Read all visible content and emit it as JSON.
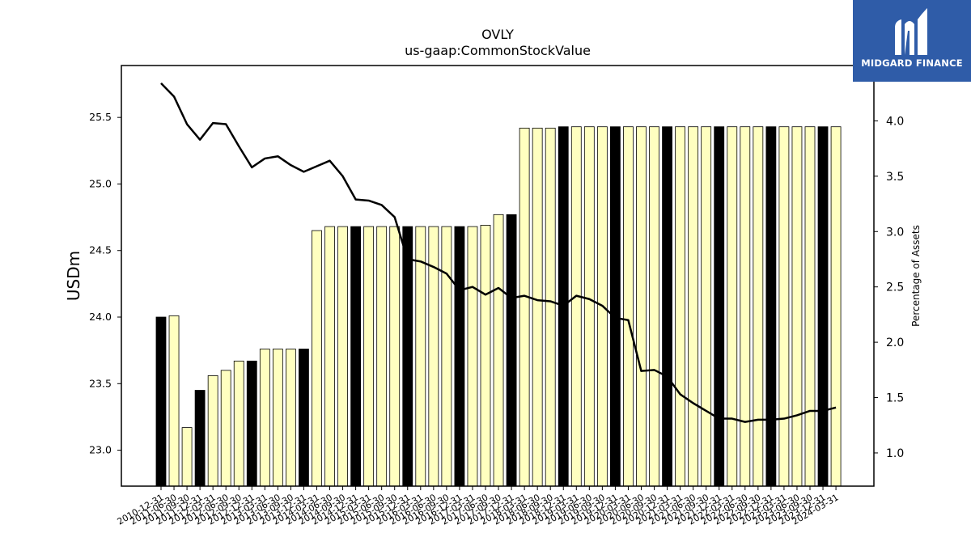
{
  "watermark": {
    "text": "MIDGARD FINANCE",
    "bg_color": "#2f5ca8"
  },
  "chart_data": {
    "type": "bar",
    "title": "OVLY",
    "subtitle": "us-gaap:CommonStockValue",
    "ylabel": "USDm",
    "y2label": "Percentage of Assets",
    "ylim": [
      22.73,
      25.89
    ],
    "y2lim": [
      0.7,
      4.5
    ],
    "yticks": [
      "23.0",
      "23.5",
      "24.0",
      "24.5",
      "25.0",
      "25.5"
    ],
    "y2ticks": [
      "1.0",
      "1.5",
      "2.0",
      "2.5",
      "3.0",
      "3.5",
      "4.0"
    ],
    "bar_colors": {
      "annual": "#000000",
      "quarterly": "#ffffc0",
      "edge": "#000000"
    },
    "line_color": "#000000",
    "categories": [
      "2010-12-31",
      "2011-06-30",
      "2011-09-30",
      "2011-12-31",
      "2012-03-31",
      "2012-06-30",
      "2012-09-30",
      "2012-12-31",
      "2013-03-31",
      "2013-06-30",
      "2013-09-30",
      "2013-12-31",
      "2014-03-31",
      "2014-06-30",
      "2014-09-30",
      "2014-12-31",
      "2015-03-31",
      "2015-06-30",
      "2015-09-30",
      "2015-12-31",
      "2016-03-31",
      "2016-06-30",
      "2016-09-30",
      "2016-12-31",
      "2017-03-31",
      "2017-06-30",
      "2017-09-30",
      "2017-12-31",
      "2018-03-31",
      "2018-06-30",
      "2018-09-30",
      "2018-12-31",
      "2019-03-31",
      "2019-06-30",
      "2019-09-30",
      "2019-12-31",
      "2020-03-31",
      "2020-06-30",
      "2020-09-30",
      "2020-12-31",
      "2021-03-31",
      "2021-06-30",
      "2021-09-30",
      "2021-12-31",
      "2022-03-31",
      "2022-06-30",
      "2022-09-30",
      "2022-12-31",
      "2023-03-31",
      "2023-06-30",
      "2023-09-30",
      "2023-12-31",
      "2024-03-31"
    ],
    "values": [
      24.0,
      24.01,
      23.17,
      23.45,
      23.56,
      23.6,
      23.67,
      23.67,
      23.76,
      23.76,
      23.76,
      23.76,
      24.65,
      24.68,
      24.68,
      24.68,
      24.68,
      24.68,
      24.68,
      24.68,
      24.68,
      24.68,
      24.68,
      24.68,
      24.68,
      24.69,
      24.77,
      24.77,
      25.42,
      25.42,
      25.42,
      25.43,
      25.43,
      25.43,
      25.43,
      25.43,
      25.43,
      25.43,
      25.43,
      25.43,
      25.43,
      25.43,
      25.43,
      25.43,
      25.43,
      25.43,
      25.43,
      25.43,
      25.43,
      25.43,
      25.43,
      25.43,
      25.43
    ],
    "annual": [
      true,
      false,
      false,
      true,
      false,
      false,
      false,
      true,
      false,
      false,
      false,
      true,
      false,
      false,
      false,
      true,
      false,
      false,
      false,
      true,
      false,
      false,
      false,
      true,
      false,
      false,
      false,
      true,
      false,
      false,
      false,
      true,
      false,
      false,
      false,
      true,
      false,
      false,
      false,
      true,
      false,
      false,
      false,
      true,
      false,
      false,
      false,
      true,
      false,
      false,
      false,
      true,
      false
    ],
    "pct_assets": [
      4.34,
      4.22,
      3.97,
      3.83,
      3.98,
      3.97,
      3.77,
      3.58,
      3.66,
      3.68,
      3.6,
      3.54,
      3.59,
      3.64,
      3.5,
      3.29,
      3.28,
      3.24,
      3.13,
      2.75,
      2.73,
      2.68,
      2.62,
      2.47,
      2.5,
      2.43,
      2.49,
      2.4,
      2.42,
      2.38,
      2.37,
      2.33,
      2.42,
      2.39,
      2.33,
      2.22,
      2.2,
      1.74,
      1.75,
      1.69,
      1.53,
      1.45,
      1.38,
      1.31,
      1.31,
      1.28,
      1.3,
      1.3,
      1.31,
      1.34,
      1.38,
      1.38,
      1.41
    ]
  }
}
